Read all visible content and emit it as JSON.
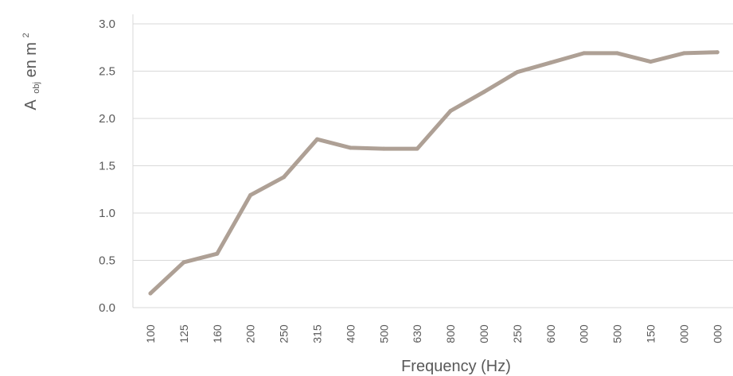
{
  "chart_data": {
    "type": "line",
    "title": "",
    "xlabel": "Frequency (Hz)",
    "ylabel_main": "A",
    "ylabel_sub": "obj",
    "ylabel_rest": " en m",
    "ylabel_sup": "2",
    "categories": [
      "100",
      "125",
      "160",
      "200",
      "250",
      "315",
      "400",
      "500",
      "630",
      "800",
      "000",
      "250",
      "600",
      "000",
      "500",
      "150",
      "000",
      "000"
    ],
    "series": [
      {
        "values": [
          0.15,
          0.48,
          0.57,
          1.19,
          1.38,
          1.78,
          1.69,
          1.68,
          1.68,
          2.08,
          2.28,
          2.49,
          2.59,
          2.69,
          2.69,
          2.6,
          2.69,
          2.7
        ]
      }
    ],
    "yticks": [
      "0.0",
      "0.5",
      "1.0",
      "1.5",
      "2.0",
      "2.5",
      "3.0"
    ],
    "ylim": [
      0,
      3.0
    ],
    "grid": true,
    "legend": "none",
    "line_color": "#aea095",
    "grid_color": "#d9d9d9",
    "text_color": "#595959"
  }
}
